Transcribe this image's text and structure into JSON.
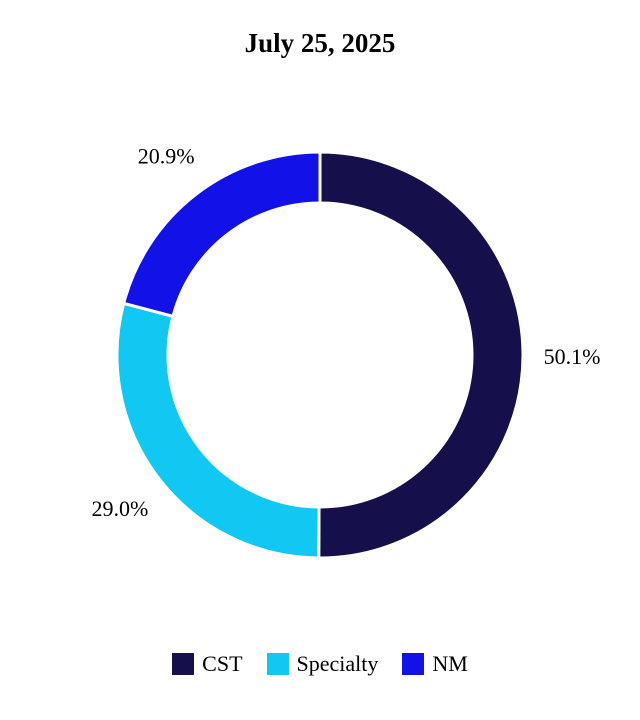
{
  "chart_data": {
    "type": "pie",
    "variant": "donut",
    "title": "July 25, 2025",
    "categories": [
      "CST",
      "Specialty",
      "NM"
    ],
    "values": [
      50.1,
      29.0,
      20.9
    ],
    "value_labels": [
      "50.1%",
      "29.0%",
      "20.9%"
    ],
    "colors": [
      "#15104c",
      "#10c8f2",
      "#1212e8"
    ],
    "start": "top, clockwise",
    "legend_position": "bottom"
  }
}
